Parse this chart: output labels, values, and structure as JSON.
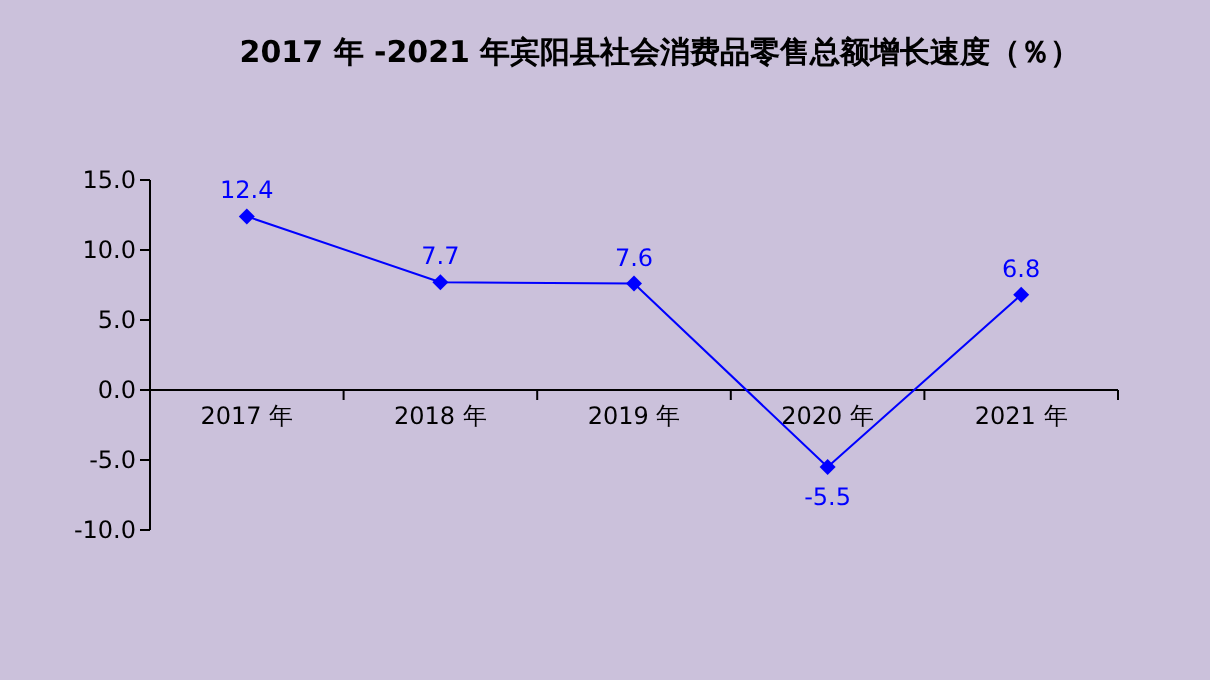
{
  "chart_data": {
    "type": "line",
    "title": "2017 年 -2021 年宾阳县社会消费品零售总额增长速度（％）",
    "categories": [
      "2017 年",
      "2018 年",
      "2019 年",
      "2020 年",
      "2021 年"
    ],
    "series": [
      {
        "color": "#0000ff",
        "values": [
          12.4,
          7.7,
          7.6,
          -5.5,
          6.8
        ]
      }
    ],
    "ylim": [
      -10,
      15
    ],
    "yticks": [
      {
        "value": -10,
        "label": "-10.0"
      },
      {
        "value": -5,
        "label": "-5.0"
      },
      {
        "value": 0,
        "label": "0.0"
      },
      {
        "value": 5,
        "label": "5.0"
      },
      {
        "value": 10,
        "label": "10.0"
      },
      {
        "value": 15,
        "label": "15.0"
      }
    ],
    "data_labels": true,
    "marker": "diamond",
    "line_style": "solid",
    "grid": false
  }
}
